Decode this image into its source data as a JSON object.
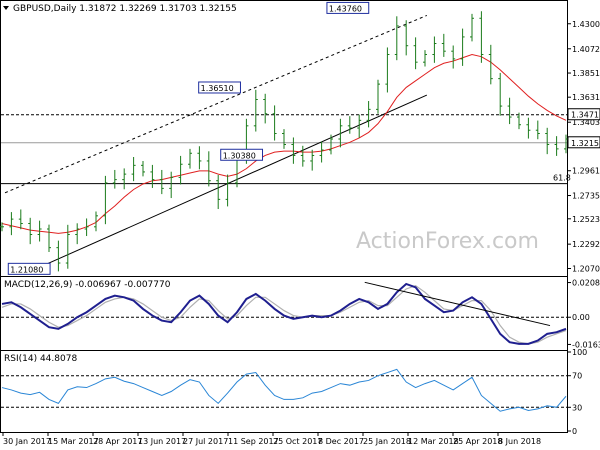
{
  "chart": {
    "symbol_line": "GBPUSD,Daily  1.31872 1.32269 1.31703 1.32155",
    "macd_label": "MACD(12,26,9) -0.006967 -0.007770",
    "rsi_label": "RSI(14) 44.8078",
    "watermark": "ActionForex.com",
    "annotations": [
      {
        "text": "1.43760",
        "x": "2018-01-26",
        "y": 1.4376
      },
      {
        "text": "1.36510",
        "x": "2017-09-20",
        "y": 1.3651
      },
      {
        "text": "1.30380",
        "x": "2017-10-12",
        "y": 1.3038
      },
      {
        "text": "1.21080",
        "x": "2017-03-14",
        "y": 1.2108
      }
    ],
    "fib_label": {
      "text": "61.8",
      "y": 1.2843
    }
  },
  "chart_data": [
    {
      "type": "line",
      "subtype": "candlestick",
      "title": "GBPUSD,Daily",
      "last_ohlc": {
        "open": 1.31872,
        "high": 1.32269,
        "low": 1.31703,
        "close": 1.32155
      },
      "y_ticks": [
        "1.43000",
        "1.40720",
        "1.38510",
        "1.36310",
        "1.34030",
        "1.29610",
        "1.27350",
        "1.25230",
        "1.22920",
        "1.20700"
      ],
      "y_tick_values": [
        1.43,
        1.4072,
        1.3851,
        1.3631,
        1.3403,
        1.2961,
        1.2735,
        1.2523,
        1.2292,
        1.207
      ],
      "ylim": [
        1.202,
        1.448
      ],
      "price_labels": [
        {
          "text": "1.34710",
          "value": 1.3471,
          "highlight": true
        },
        {
          "text": "1.32155",
          "value": 1.32155,
          "highlight": true
        }
      ],
      "horizontal_lines": [
        {
          "value": 1.3471,
          "style": "dashed"
        },
        {
          "value": 1.32155,
          "style": "solid-gray"
        },
        {
          "value": 1.2843,
          "style": "solid"
        }
      ],
      "x_ticks": [
        "30 Jan 2017",
        "15 Mar 2017",
        "28 Apr 2017",
        "13 Jun 2017",
        "27 Jul 2017",
        "11 Sep 2017",
        "25 Oct 2017",
        "8 Dec 2017",
        "25 Jan 2018",
        "12 Mar 2018",
        "25 Apr 2018",
        "8 Jun 2018"
      ],
      "series": [
        {
          "name": "price_close_approx",
          "values": [
            1.245,
            1.252,
            1.248,
            1.238,
            1.243,
            1.226,
            1.212,
            1.238,
            1.243,
            1.245,
            1.255,
            1.285,
            1.288,
            1.293,
            1.301,
            1.295,
            1.288,
            1.28,
            1.29,
            1.302,
            1.312,
            1.305,
            1.287,
            1.27,
            1.285,
            1.31,
            1.337,
            1.361,
            1.348,
            1.33,
            1.32,
            1.31,
            1.305,
            1.31,
            1.315,
            1.325,
            1.337,
            1.335,
            1.342,
            1.352,
            1.375,
            1.402,
            1.428,
            1.41,
            1.395,
            1.402,
            1.412,
            1.405,
            1.398,
            1.418,
            1.435,
            1.402,
            1.38,
            1.355,
            1.345,
            1.338,
            1.333,
            1.33,
            1.32,
            1.316,
            1.325
          ]
        },
        {
          "name": "ma_red",
          "values": [
            1.248,
            1.246,
            1.244,
            1.242,
            1.241,
            1.24,
            1.239,
            1.24,
            1.242,
            1.245,
            1.249,
            1.257,
            1.264,
            1.272,
            1.279,
            1.284,
            1.287,
            1.288,
            1.29,
            1.292,
            1.294,
            1.296,
            1.296,
            1.293,
            1.291,
            1.293,
            1.298,
            1.305,
            1.31,
            1.313,
            1.314,
            1.314,
            1.313,
            1.313,
            1.314,
            1.316,
            1.319,
            1.322,
            1.326,
            1.331,
            1.339,
            1.35,
            1.363,
            1.372,
            1.378,
            1.384,
            1.39,
            1.394,
            1.396,
            1.399,
            1.402,
            1.4,
            1.395,
            1.388,
            1.38,
            1.372,
            1.364,
            1.357,
            1.351,
            1.346,
            1.342
          ]
        }
      ],
      "trendlines": [
        {
          "from": [
            "2017-03-14",
            1.2108
          ],
          "to": [
            "2018-03-29",
            1.365
          ],
          "style": "solid"
        },
        {
          "from": [
            "2017-02-01",
            1.276
          ],
          "to": [
            "2018-03-29",
            1.4376
          ],
          "style": "dashed"
        }
      ]
    },
    {
      "type": "line",
      "title": "MACD(12,26,9)",
      "values_label": {
        "macd": -0.006967,
        "signal": -0.00777
      },
      "y_ticks": [
        "0.020861",
        "0.00",
        "-0.016357"
      ],
      "y_tick_values": [
        0.020861,
        0.0,
        -0.016357
      ],
      "ylim": [
        -0.0185,
        0.023
      ],
      "series": [
        {
          "name": "MACD",
          "color": "#1f1f8f",
          "values": [
            0.008,
            0.009,
            0.006,
            0.002,
            -0.002,
            -0.006,
            -0.007,
            -0.004,
            0.0,
            0.003,
            0.007,
            0.011,
            0.013,
            0.012,
            0.01,
            0.005,
            0.001,
            -0.002,
            -0.003,
            0.003,
            0.01,
            0.013,
            0.008,
            0.001,
            -0.003,
            0.003,
            0.011,
            0.014,
            0.01,
            0.005,
            0.001,
            -0.001,
            0.0,
            0.001,
            0.0,
            0.001,
            0.004,
            0.008,
            0.011,
            0.009,
            0.005,
            0.008,
            0.015,
            0.02,
            0.018,
            0.011,
            0.007,
            0.003,
            0.004,
            0.009,
            0.012,
            0.008,
            -0.001,
            -0.01,
            -0.015,
            -0.016,
            -0.016,
            -0.014,
            -0.01,
            -0.009,
            -0.007
          ]
        },
        {
          "name": "Signal",
          "color": "#b0b0b0",
          "values": [
            0.006,
            0.008,
            0.008,
            0.005,
            0.001,
            -0.003,
            -0.006,
            -0.005,
            -0.002,
            0.001,
            0.005,
            0.009,
            0.011,
            0.012,
            0.011,
            0.008,
            0.004,
            0.0,
            -0.002,
            0.0,
            0.006,
            0.011,
            0.01,
            0.004,
            -0.001,
            0.001,
            0.007,
            0.012,
            0.012,
            0.008,
            0.004,
            0.001,
            0.0,
            0.001,
            0.001,
            0.001,
            0.003,
            0.006,
            0.009,
            0.01,
            0.007,
            0.007,
            0.012,
            0.017,
            0.019,
            0.015,
            0.01,
            0.005,
            0.004,
            0.007,
            0.01,
            0.01,
            0.004,
            -0.005,
            -0.012,
            -0.015,
            -0.016,
            -0.015,
            -0.012,
            -0.01,
            -0.008
          ]
        }
      ],
      "trendlines": [
        {
          "from": [
            "2018-01-26",
            0.021
          ],
          "to": [
            "2018-06-20",
            -0.005
          ],
          "style": "solid"
        }
      ]
    },
    {
      "type": "line",
      "title": "RSI(14)",
      "value_label": 44.8078,
      "y_ticks": [
        "100",
        "70",
        "30",
        "0"
      ],
      "y_tick_values": [
        100,
        70,
        30,
        0
      ],
      "levels": [
        70,
        30
      ],
      "ylim": [
        0,
        100
      ],
      "series": [
        {
          "name": "RSI",
          "color": "#2a86d6",
          "values": [
            55,
            52,
            48,
            46,
            49,
            40,
            35,
            52,
            56,
            55,
            60,
            66,
            68,
            63,
            60,
            55,
            50,
            45,
            50,
            58,
            65,
            62,
            45,
            35,
            48,
            62,
            72,
            74,
            58,
            45,
            40,
            40,
            42,
            48,
            50,
            55,
            60,
            58,
            62,
            64,
            70,
            74,
            78,
            62,
            55,
            60,
            64,
            58,
            52,
            60,
            68,
            45,
            35,
            25,
            28,
            30,
            26,
            28,
            32,
            30,
            44
          ]
        }
      ]
    }
  ]
}
